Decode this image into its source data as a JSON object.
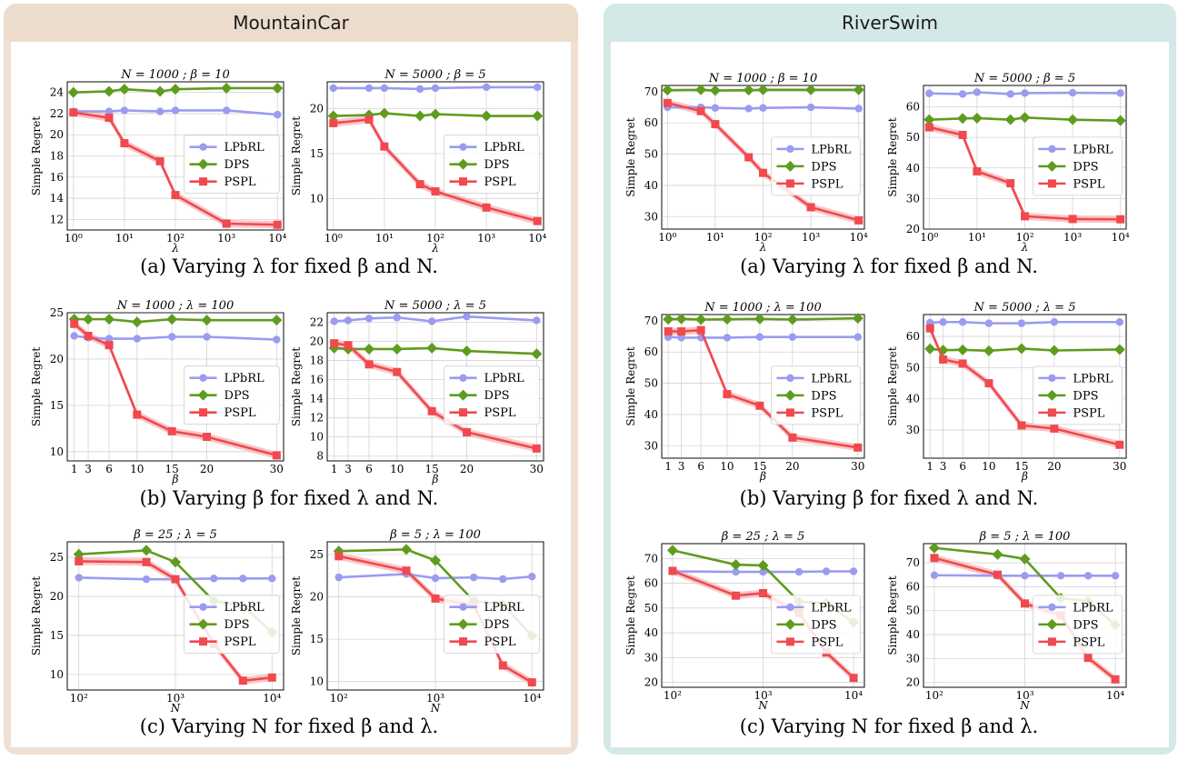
{
  "panels": [
    {
      "title": "MountainCar",
      "captions": [
        "(a) Varying λ for fixed β and N.",
        "(b) Varying β for fixed λ and N.",
        "(c) Varying N for fixed β and λ."
      ]
    },
    {
      "title": "RiverSwim",
      "captions": [
        "(a) Varying λ for fixed β and N.",
        "(b) Varying β for fixed λ and N.",
        "(c) Varying N for fixed β and λ."
      ]
    }
  ],
  "colors": {
    "LPbRL": "#9b9bf0",
    "DPS": "#5f9c1e",
    "PSPL": "#f0494e",
    "PSPL_band": "#f7b9bb"
  },
  "chart_data": [
    {
      "type": "line",
      "panel": "MountainCar",
      "title": "N = 1000 ; β = 10",
      "xscale": "log",
      "xlabel": "λ",
      "ylabel": "Simple Regret",
      "x": [
        1,
        5,
        10,
        50,
        100,
        1000,
        10000
      ],
      "xticks": [
        1,
        10,
        100,
        1000,
        10000
      ],
      "xtick_labels": [
        "10⁰",
        "10¹",
        "10²",
        "10³",
        "10⁴"
      ],
      "ylim": [
        11,
        25
      ],
      "yticks": [
        12,
        14,
        16,
        18,
        20,
        22,
        24
      ],
      "legend": "center-right",
      "series": [
        {
          "name": "LPbRL",
          "values": [
            22.2,
            22.2,
            22.3,
            22.2,
            22.3,
            22.3,
            21.9
          ]
        },
        {
          "name": "DPS",
          "values": [
            24.0,
            24.1,
            24.3,
            24.1,
            24.3,
            24.4,
            24.4
          ]
        },
        {
          "name": "PSPL",
          "values": [
            22.1,
            21.6,
            19.2,
            17.5,
            14.3,
            11.6,
            11.5
          ]
        }
      ]
    },
    {
      "type": "line",
      "panel": "MountainCar",
      "title": "N = 5000 ; β = 5",
      "xscale": "log",
      "xlabel": "λ",
      "ylabel": "Simple Regret",
      "x": [
        1,
        5,
        10,
        50,
        100,
        1000,
        10000
      ],
      "xticks": [
        1,
        10,
        100,
        1000,
        10000
      ],
      "xtick_labels": [
        "10⁰",
        "10¹",
        "10²",
        "10³",
        "10⁴"
      ],
      "ylim": [
        6.5,
        23
      ],
      "yticks": [
        10,
        15,
        20
      ],
      "legend": "center-right",
      "series": [
        {
          "name": "LPbRL",
          "values": [
            22.3,
            22.3,
            22.3,
            22.2,
            22.3,
            22.4,
            22.4
          ]
        },
        {
          "name": "DPS",
          "values": [
            19.2,
            19.3,
            19.5,
            19.2,
            19.4,
            19.2,
            19.2
          ]
        },
        {
          "name": "PSPL",
          "values": [
            18.4,
            18.8,
            15.8,
            11.6,
            10.8,
            9.0,
            7.5
          ]
        }
      ]
    },
    {
      "type": "line",
      "panel": "RiverSwim",
      "title": "N = 1000 ; β = 10",
      "xscale": "log",
      "xlabel": "λ",
      "ylabel": "Simple Regret",
      "x": [
        1,
        5,
        10,
        50,
        100,
        1000,
        10000
      ],
      "xticks": [
        1,
        10,
        100,
        1000,
        10000
      ],
      "xtick_labels": [
        "10⁰",
        "10¹",
        "10²",
        "10³",
        "10⁴"
      ],
      "ylim": [
        26,
        72
      ],
      "yticks": [
        30,
        40,
        50,
        60,
        70
      ],
      "legend": "center-right",
      "series": [
        {
          "name": "LPbRL",
          "values": [
            65.0,
            65.0,
            64.8,
            64.6,
            64.8,
            65.0,
            64.6
          ]
        },
        {
          "name": "DPS",
          "values": [
            70.5,
            70.6,
            70.4,
            70.5,
            70.6,
            70.6,
            70.6
          ]
        },
        {
          "name": "PSPL",
          "values": [
            66.4,
            63.8,
            59.6,
            49.0,
            44.0,
            33.0,
            28.8
          ]
        }
      ]
    },
    {
      "type": "line",
      "panel": "RiverSwim",
      "title": "N = 5000 ; β = 5",
      "xscale": "log",
      "xlabel": "λ",
      "ylabel": "Simple Regret",
      "x": [
        1,
        5,
        10,
        50,
        100,
        1000,
        10000
      ],
      "xticks": [
        1,
        10,
        100,
        1000,
        10000
      ],
      "xtick_labels": [
        "10⁰",
        "10¹",
        "10²",
        "10³",
        "10⁴"
      ],
      "ylim": [
        20,
        67
      ],
      "yticks": [
        20,
        30,
        40,
        50,
        60
      ],
      "legend": "center-right",
      "series": [
        {
          "name": "LPbRL",
          "values": [
            64.4,
            64.2,
            64.8,
            64.2,
            64.5,
            64.6,
            64.5
          ]
        },
        {
          "name": "DPS",
          "values": [
            55.8,
            56.2,
            56.3,
            55.8,
            56.5,
            55.8,
            55.5
          ]
        },
        {
          "name": "PSPL",
          "values": [
            53.3,
            50.8,
            38.9,
            35.0,
            24.2,
            23.3,
            23.2
          ]
        }
      ]
    },
    {
      "type": "line",
      "panel": "MountainCar",
      "title": "N = 1000 ; λ = 100",
      "xscale": "linear",
      "xlabel": "β",
      "ylabel": "Simple Regret",
      "x": [
        1,
        3,
        6,
        10,
        15,
        20,
        30
      ],
      "xticks": [
        1,
        3,
        6,
        10,
        15,
        20,
        30
      ],
      "xtick_labels": [
        "1",
        "3",
        "6",
        "10",
        "15",
        "20",
        "30"
      ],
      "ylim": [
        9,
        25
      ],
      "yticks": [
        10,
        15,
        20,
        25
      ],
      "legend": "center-right",
      "series": [
        {
          "name": "LPbRL",
          "values": [
            22.5,
            22.3,
            22.2,
            22.2,
            22.4,
            22.4,
            22.1
          ]
        },
        {
          "name": "DPS",
          "values": [
            24.3,
            24.3,
            24.3,
            24.0,
            24.3,
            24.2,
            24.2
          ]
        },
        {
          "name": "PSPL",
          "values": [
            23.8,
            22.5,
            21.5,
            14.0,
            12.2,
            11.6,
            9.6
          ]
        }
      ]
    },
    {
      "type": "line",
      "panel": "MountainCar",
      "title": "N = 5000 ; λ = 5",
      "xscale": "linear",
      "xlabel": "β",
      "ylabel": "Simple Regret",
      "x": [
        1,
        3,
        6,
        10,
        15,
        20,
        30
      ],
      "xticks": [
        1,
        3,
        6,
        10,
        15,
        20,
        30
      ],
      "xtick_labels": [
        "1",
        "3",
        "6",
        "10",
        "15",
        "20",
        "30"
      ],
      "ylim": [
        7.5,
        23
      ],
      "yticks": [
        8,
        10,
        12,
        14,
        16,
        18,
        20,
        22
      ],
      "legend": "center-right",
      "series": [
        {
          "name": "LPbRL",
          "values": [
            22.1,
            22.2,
            22.4,
            22.5,
            22.1,
            22.6,
            22.2
          ]
        },
        {
          "name": "DPS",
          "values": [
            19.3,
            19.2,
            19.2,
            19.2,
            19.3,
            19.0,
            18.7
          ]
        },
        {
          "name": "PSPL",
          "values": [
            19.8,
            19.6,
            17.6,
            16.8,
            12.7,
            10.5,
            8.8
          ]
        }
      ]
    },
    {
      "type": "line",
      "panel": "RiverSwim",
      "title": "N = 1000 ; λ = 100",
      "xscale": "linear",
      "xlabel": "β",
      "ylabel": "Simple Regret",
      "x": [
        1,
        3,
        6,
        10,
        15,
        20,
        30
      ],
      "xticks": [
        1,
        3,
        6,
        10,
        15,
        20,
        30
      ],
      "xtick_labels": [
        "1",
        "3",
        "6",
        "10",
        "15",
        "20",
        "30"
      ],
      "ylim": [
        26,
        72
      ],
      "yticks": [
        30,
        40,
        50,
        60,
        70
      ],
      "legend": "center-right",
      "series": [
        {
          "name": "LPbRL",
          "values": [
            64.8,
            64.6,
            64.6,
            64.6,
            64.8,
            64.8,
            64.8
          ]
        },
        {
          "name": "DPS",
          "values": [
            70.5,
            70.6,
            70.4,
            70.5,
            70.6,
            70.4,
            70.8
          ]
        },
        {
          "name": "PSPL",
          "values": [
            66.6,
            66.6,
            67.0,
            46.5,
            42.8,
            32.6,
            29.4
          ]
        }
      ]
    },
    {
      "type": "line",
      "panel": "RiverSwim",
      "title": "N = 5000 ; λ = 5",
      "xscale": "linear",
      "xlabel": "β",
      "ylabel": "Simple Regret",
      "x": [
        1,
        3,
        6,
        10,
        15,
        20,
        30
      ],
      "xticks": [
        1,
        3,
        6,
        10,
        15,
        20,
        30
      ],
      "xtick_labels": [
        "1",
        "3",
        "6",
        "10",
        "15",
        "20",
        "30"
      ],
      "ylim": [
        21,
        67
      ],
      "yticks": [
        30,
        40,
        50,
        60
      ],
      "legend": "center-right",
      "series": [
        {
          "name": "LPbRL",
          "values": [
            64.4,
            64.6,
            64.6,
            64.2,
            64.2,
            64.6,
            64.6
          ]
        },
        {
          "name": "DPS",
          "values": [
            56.0,
            55.6,
            55.7,
            55.4,
            56.1,
            55.5,
            55.8
          ]
        },
        {
          "name": "PSPL",
          "values": [
            62.6,
            52.6,
            51.3,
            45.0,
            31.5,
            30.5,
            25.3
          ]
        }
      ]
    },
    {
      "type": "line",
      "panel": "MountainCar",
      "title": "β = 25 ; λ = 5",
      "xscale": "log",
      "xlabel": "N",
      "ylabel": "Simple Regret",
      "x": [
        100,
        500,
        1000,
        2500,
        5000,
        10000
      ],
      "xticks": [
        100,
        1000,
        10000
      ],
      "xtick_labels": [
        "10²",
        "10³",
        "10⁴"
      ],
      "ylim": [
        8,
        27
      ],
      "yticks": [
        10,
        15,
        20,
        25
      ],
      "legend": "center-right",
      "series": [
        {
          "name": "LPbRL",
          "values": [
            22.4,
            22.2,
            22.2,
            22.3,
            22.3,
            22.3
          ]
        },
        {
          "name": "DPS",
          "values": [
            25.4,
            25.9,
            24.4,
            19.4,
            18.8,
            15.4
          ]
        },
        {
          "name": "PSPL",
          "values": [
            24.5,
            24.4,
            22.2,
            13.9,
            9.2,
            9.6
          ]
        }
      ]
    },
    {
      "type": "line",
      "panel": "MountainCar",
      "title": "β = 5 ; λ = 100",
      "xscale": "log",
      "xlabel": "N",
      "ylabel": "Simple Regret",
      "x": [
        100,
        500,
        1000,
        2500,
        5000,
        10000
      ],
      "xticks": [
        100,
        1000,
        10000
      ],
      "xtick_labels": [
        "10²",
        "10³",
        "10⁴"
      ],
      "ylim": [
        9,
        26.5
      ],
      "yticks": [
        10,
        15,
        20,
        25
      ],
      "legend": "center-right",
      "series": [
        {
          "name": "LPbRL",
          "values": [
            22.3,
            22.7,
            22.2,
            22.3,
            22.1,
            22.4
          ]
        },
        {
          "name": "DPS",
          "values": [
            25.4,
            25.6,
            24.3,
            19.5,
            19.1,
            15.4
          ]
        },
        {
          "name": "PSPL",
          "values": [
            24.8,
            23.1,
            19.8,
            19.0,
            11.9,
            9.9
          ]
        }
      ]
    },
    {
      "type": "line",
      "panel": "RiverSwim",
      "title": "β = 25 ; λ = 5",
      "xscale": "log",
      "xlabel": "N",
      "ylabel": "Simple Regret",
      "x": [
        100,
        500,
        1000,
        2500,
        5000,
        10000
      ],
      "xticks": [
        100,
        1000,
        10000
      ],
      "xtick_labels": [
        "10²",
        "10³",
        "10⁴"
      ],
      "ylim": [
        18,
        76
      ],
      "yticks": [
        20,
        30,
        40,
        50,
        60,
        70
      ],
      "legend": "center-right",
      "series": [
        {
          "name": "LPbRL",
          "values": [
            64.8,
            64.6,
            64.6,
            64.6,
            64.8,
            64.8
          ]
        },
        {
          "name": "DPS",
          "values": [
            73.3,
            67.5,
            67.2,
            52.6,
            52.0,
            44.2
          ]
        },
        {
          "name": "PSPL",
          "values": [
            65.0,
            55.0,
            56.0,
            48.0,
            32.0,
            21.8
          ]
        }
      ]
    },
    {
      "type": "line",
      "panel": "RiverSwim",
      "title": "β = 5 ; λ = 100",
      "xscale": "log",
      "xlabel": "N",
      "ylabel": "Simple Regret",
      "x": [
        100,
        500,
        1000,
        2500,
        5000,
        10000
      ],
      "xticks": [
        100,
        1000,
        10000
      ],
      "xtick_labels": [
        "10²",
        "10³",
        "10⁴"
      ],
      "ylim": [
        18,
        78
      ],
      "yticks": [
        20,
        30,
        40,
        50,
        60,
        70
      ],
      "legend": "center-right",
      "series": [
        {
          "name": "LPbRL",
          "values": [
            64.8,
            64.6,
            64.6,
            64.6,
            64.6,
            64.6
          ]
        },
        {
          "name": "DPS",
          "values": [
            76.2,
            73.5,
            71.6,
            55.2,
            54.0,
            44.0
          ]
        },
        {
          "name": "PSPL",
          "values": [
            72.0,
            65.0,
            53.0,
            48.0,
            30.3,
            21.3
          ]
        }
      ]
    }
  ]
}
